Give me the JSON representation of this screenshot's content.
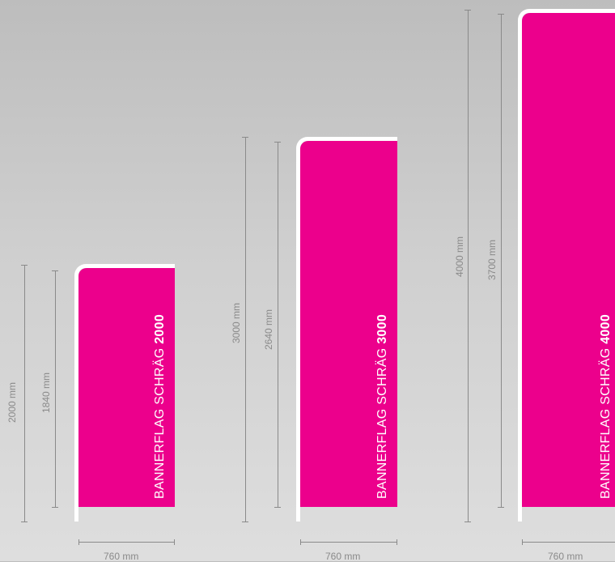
{
  "colors": {
    "fabric": "#ec008c",
    "pole": "#ffffff",
    "dimension": "#8a8a8a"
  },
  "flags": [
    {
      "label_prefix": "BANNERFLAG SCHRÄG ",
      "label_bold": "2000",
      "total_height": "2000 mm",
      "fabric_height": "1840 mm",
      "width": "760 mm"
    },
    {
      "label_prefix": "BANNERFLAG SCHRÄG ",
      "label_bold": "3000",
      "total_height": "3000 mm",
      "fabric_height": "2640 mm",
      "width": "760 mm"
    },
    {
      "label_prefix": "BANNERFLAG SCHRÄG ",
      "label_bold": "4000",
      "total_height": "4000 mm",
      "fabric_height": "3700 mm",
      "width": "760 mm"
    }
  ]
}
